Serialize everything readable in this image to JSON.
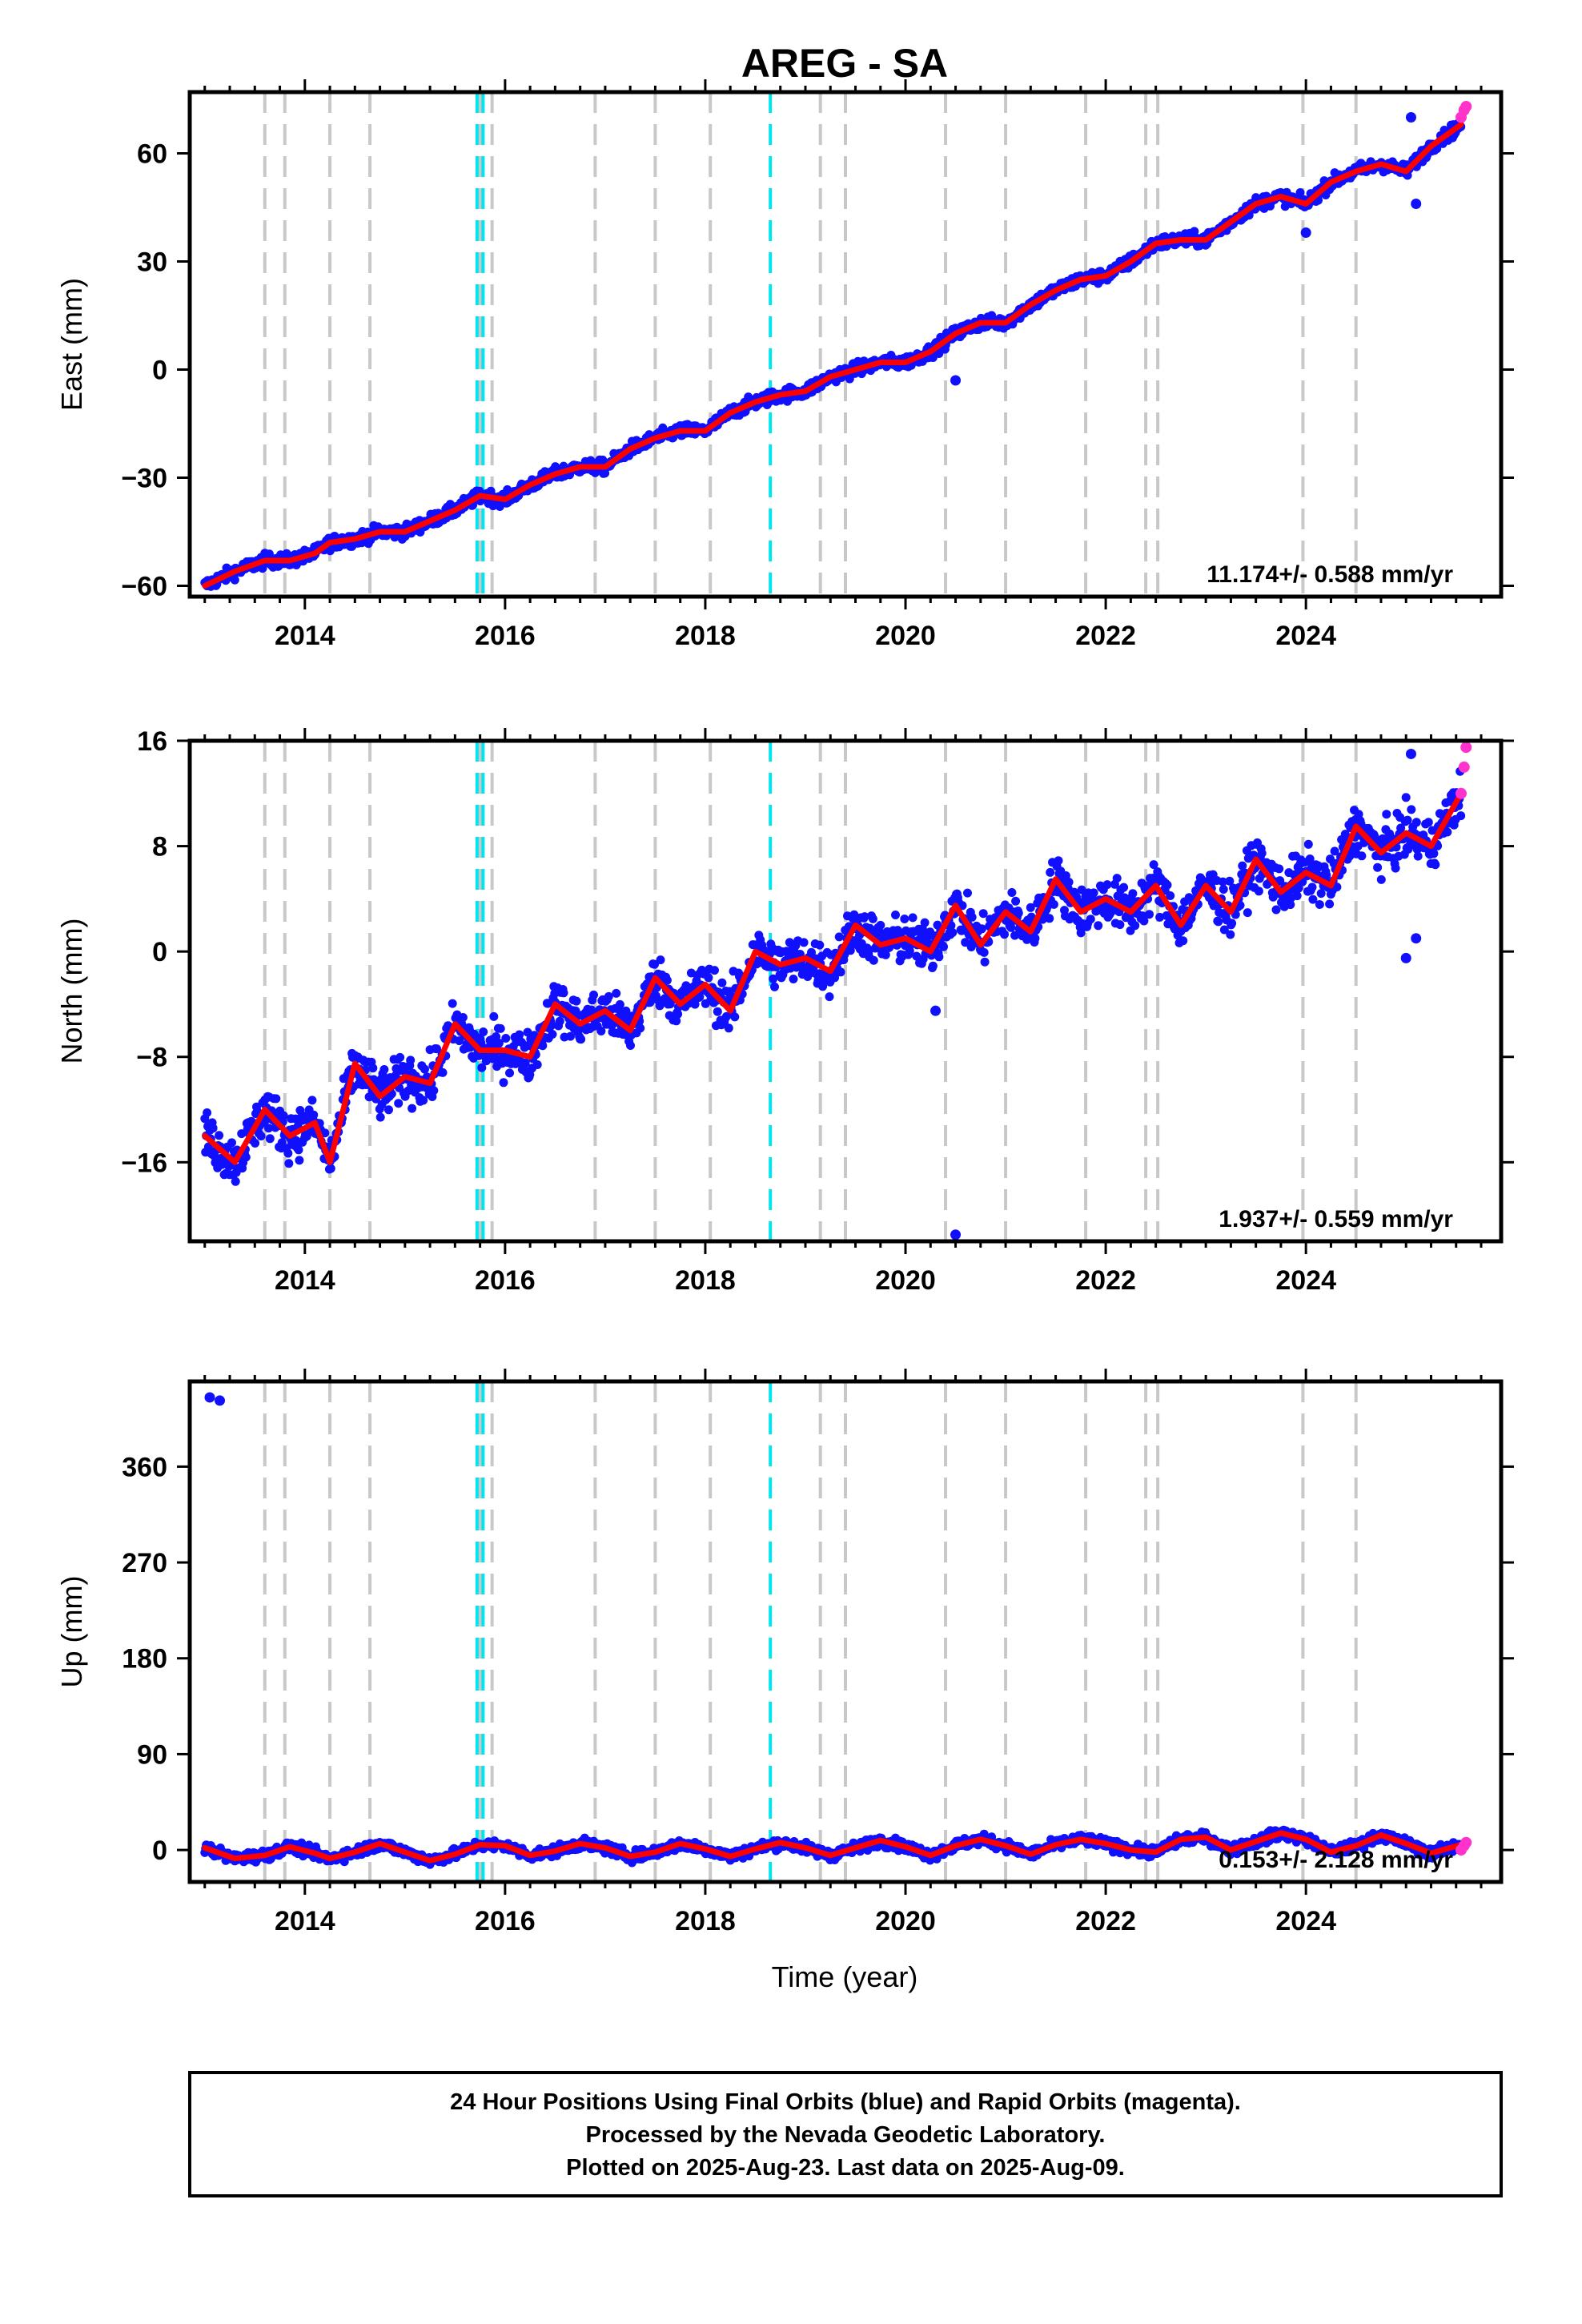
{
  "figure": {
    "title": "AREG - SA",
    "x_axis_label": "Time (year)",
    "footer": [
      "24 Hour Positions Using Final Orbits (blue) and Rapid Orbits (magenta).",
      "Processed by the Nevada Geodetic Laboratory.",
      "Plotted on 2025-Aug-23. Last data on 2025-Aug-09."
    ]
  },
  "colors": {
    "final_orbits": "#1010ff",
    "rapid_orbits": "#ff33cc",
    "model_fit": "#ff0000",
    "equipment_change_lines": "#c8c8c8",
    "earthquake_lines": "#00e5ee",
    "frame": "#000000"
  },
  "event_lines": {
    "equipment_change": [
      2013.6,
      2013.8,
      2014.25,
      2014.65,
      2015.75,
      2015.87,
      2016.9,
      2017.5,
      2018.05,
      2019.15,
      2019.4,
      2020.4,
      2021.0,
      2021.8,
      2022.4,
      2022.52,
      2023.97,
      2024.5
    ],
    "earthquake": [
      2015.72,
      2015.78,
      2018.65
    ]
  },
  "chart_data": [
    {
      "type": "scatter",
      "component": "East",
      "ylabel": "East (mm)",
      "xlim": [
        2012.85,
        2025.95
      ],
      "ylim": [
        -63,
        77
      ],
      "x_ticks": [
        2014,
        2016,
        2018,
        2020,
        2022,
        2024
      ],
      "y_ticks": [
        -60,
        -30,
        0,
        30,
        60
      ],
      "rate_label": "11.174+/- 0.588 mm/yr",
      "series": [
        {
          "name": "Final Orbits",
          "x": [
            2013.0,
            2013.3,
            2013.6,
            2013.85,
            2014.1,
            2014.25,
            2014.5,
            2014.75,
            2015.0,
            2015.25,
            2015.5,
            2015.75,
            2016.0,
            2016.25,
            2016.5,
            2016.75,
            2017.0,
            2017.25,
            2017.5,
            2017.75,
            2018.0,
            2018.25,
            2018.5,
            2018.75,
            2019.0,
            2019.25,
            2019.5,
            2019.75,
            2020.0,
            2020.25,
            2020.5,
            2020.75,
            2021.0,
            2021.25,
            2021.5,
            2021.75,
            2022.0,
            2022.25,
            2022.5,
            2022.75,
            2023.0,
            2023.25,
            2023.5,
            2023.75,
            2024.0,
            2024.25,
            2024.5,
            2024.75,
            2025.0,
            2025.25,
            2025.55
          ],
          "y": [
            -60,
            -56,
            -53,
            -53,
            -51,
            -48,
            -47,
            -45,
            -45,
            -42,
            -39,
            -35,
            -36,
            -32,
            -29,
            -27,
            -27,
            -22,
            -19,
            -17,
            -17,
            -12,
            -9,
            -7,
            -6,
            -2,
            0,
            2,
            2,
            5,
            10,
            13,
            13,
            18,
            22,
            25,
            26,
            30,
            35,
            36,
            36,
            41,
            46,
            48,
            46,
            52,
            55,
            57,
            55,
            62,
            68
          ]
        },
        {
          "name": "Rapid Orbits",
          "x": [
            2025.55,
            2025.58,
            2025.6
          ],
          "y": [
            70,
            72,
            73
          ]
        }
      ],
      "outliers": [
        {
          "x": 2020.5,
          "y": -3
        },
        {
          "x": 2024.0,
          "y": 38
        },
        {
          "x": 2025.05,
          "y": 70
        },
        {
          "x": 2025.1,
          "y": 46
        }
      ]
    },
    {
      "type": "scatter",
      "component": "North",
      "ylabel": "North (mm)",
      "xlim": [
        2012.85,
        2025.95
      ],
      "ylim": [
        -22,
        16
      ],
      "x_ticks": [
        2014,
        2016,
        2018,
        2020,
        2022,
        2024
      ],
      "y_ticks": [
        -16,
        -8,
        0,
        8,
        16
      ],
      "rate_label": "1.937+/- 0.559 mm/yr",
      "series": [
        {
          "name": "Final Orbits",
          "x": [
            2013.0,
            2013.3,
            2013.6,
            2013.85,
            2014.1,
            2014.25,
            2014.5,
            2014.75,
            2015.0,
            2015.25,
            2015.5,
            2015.75,
            2016.0,
            2016.25,
            2016.5,
            2016.75,
            2017.0,
            2017.25,
            2017.5,
            2017.75,
            2018.0,
            2018.25,
            2018.5,
            2018.75,
            2019.0,
            2019.25,
            2019.5,
            2019.75,
            2020.0,
            2020.25,
            2020.5,
            2020.75,
            2021.0,
            2021.25,
            2021.5,
            2021.75,
            2022.0,
            2022.25,
            2022.5,
            2022.75,
            2023.0,
            2023.25,
            2023.5,
            2023.75,
            2024.0,
            2024.25,
            2024.5,
            2024.75,
            2025.0,
            2025.25,
            2025.55
          ],
          "y": [
            -14,
            -16,
            -12,
            -14,
            -13,
            -16,
            -8.5,
            -11,
            -9.5,
            -10,
            -5.5,
            -7.5,
            -7.5,
            -8,
            -4,
            -5.5,
            -4.5,
            -6,
            -2,
            -4,
            -2.5,
            -4.5,
            0,
            -1,
            -0.5,
            -1.5,
            2,
            0.5,
            1,
            0,
            3.5,
            0.5,
            3,
            1.5,
            5.5,
            3,
            4,
            3,
            5,
            2,
            5,
            3,
            7,
            4.5,
            6,
            5,
            9.5,
            7.5,
            9,
            8,
            12
          ]
        },
        {
          "name": "Rapid Orbits",
          "x": [
            2025.55,
            2025.58,
            2025.6
          ],
          "y": [
            12,
            14,
            15.5
          ]
        }
      ],
      "outliers": [
        {
          "x": 2020.5,
          "y": -21.5
        },
        {
          "x": 2020.3,
          "y": -4.5
        },
        {
          "x": 2025.05,
          "y": 15
        },
        {
          "x": 2025.0,
          "y": -0.5
        },
        {
          "x": 2025.1,
          "y": 1
        }
      ]
    },
    {
      "type": "scatter",
      "component": "Up",
      "ylabel": "Up (mm)",
      "xlim": [
        2012.85,
        2025.95
      ],
      "ylim": [
        -30,
        440
      ],
      "x_ticks": [
        2014,
        2016,
        2018,
        2020,
        2022,
        2024
      ],
      "y_ticks": [
        0,
        90,
        180,
        270,
        360
      ],
      "rate_label": "0.153+/- 2.128 mm/yr",
      "series": [
        {
          "name": "Final Orbits",
          "x": [
            2013.0,
            2013.3,
            2013.6,
            2013.85,
            2014.1,
            2014.25,
            2014.5,
            2014.75,
            2015.0,
            2015.25,
            2015.5,
            2015.75,
            2016.0,
            2016.25,
            2016.5,
            2016.75,
            2017.0,
            2017.25,
            2017.5,
            2017.75,
            2018.0,
            2018.25,
            2018.5,
            2018.75,
            2019.0,
            2019.25,
            2019.5,
            2019.75,
            2020.0,
            2020.25,
            2020.5,
            2020.75,
            2021.0,
            2021.25,
            2021.5,
            2021.75,
            2022.0,
            2022.25,
            2022.5,
            2022.75,
            2023.0,
            2023.25,
            2023.5,
            2023.75,
            2024.0,
            2024.25,
            2024.5,
            2024.75,
            2025.0,
            2025.25,
            2025.55
          ],
          "y": [
            2,
            -8,
            -5,
            3,
            -3,
            -8,
            -2,
            6,
            -2,
            -10,
            -4,
            5,
            4,
            -5,
            -1,
            6,
            2,
            -6,
            -2,
            6,
            1,
            -6,
            1,
            7,
            2,
            -5,
            2,
            9,
            3,
            -5,
            4,
            10,
            4,
            -4,
            5,
            10,
            6,
            0,
            -2,
            10,
            12,
            0,
            8,
            16,
            10,
            -2,
            4,
            14,
            6,
            -3,
            5
          ]
        },
        {
          "name": "Rapid Orbits",
          "x": [
            2025.55,
            2025.58,
            2025.6
          ],
          "y": [
            0,
            4,
            7
          ]
        }
      ],
      "outliers": [
        {
          "x": 2013.05,
          "y": 425
        },
        {
          "x": 2013.15,
          "y": 422
        }
      ]
    }
  ]
}
